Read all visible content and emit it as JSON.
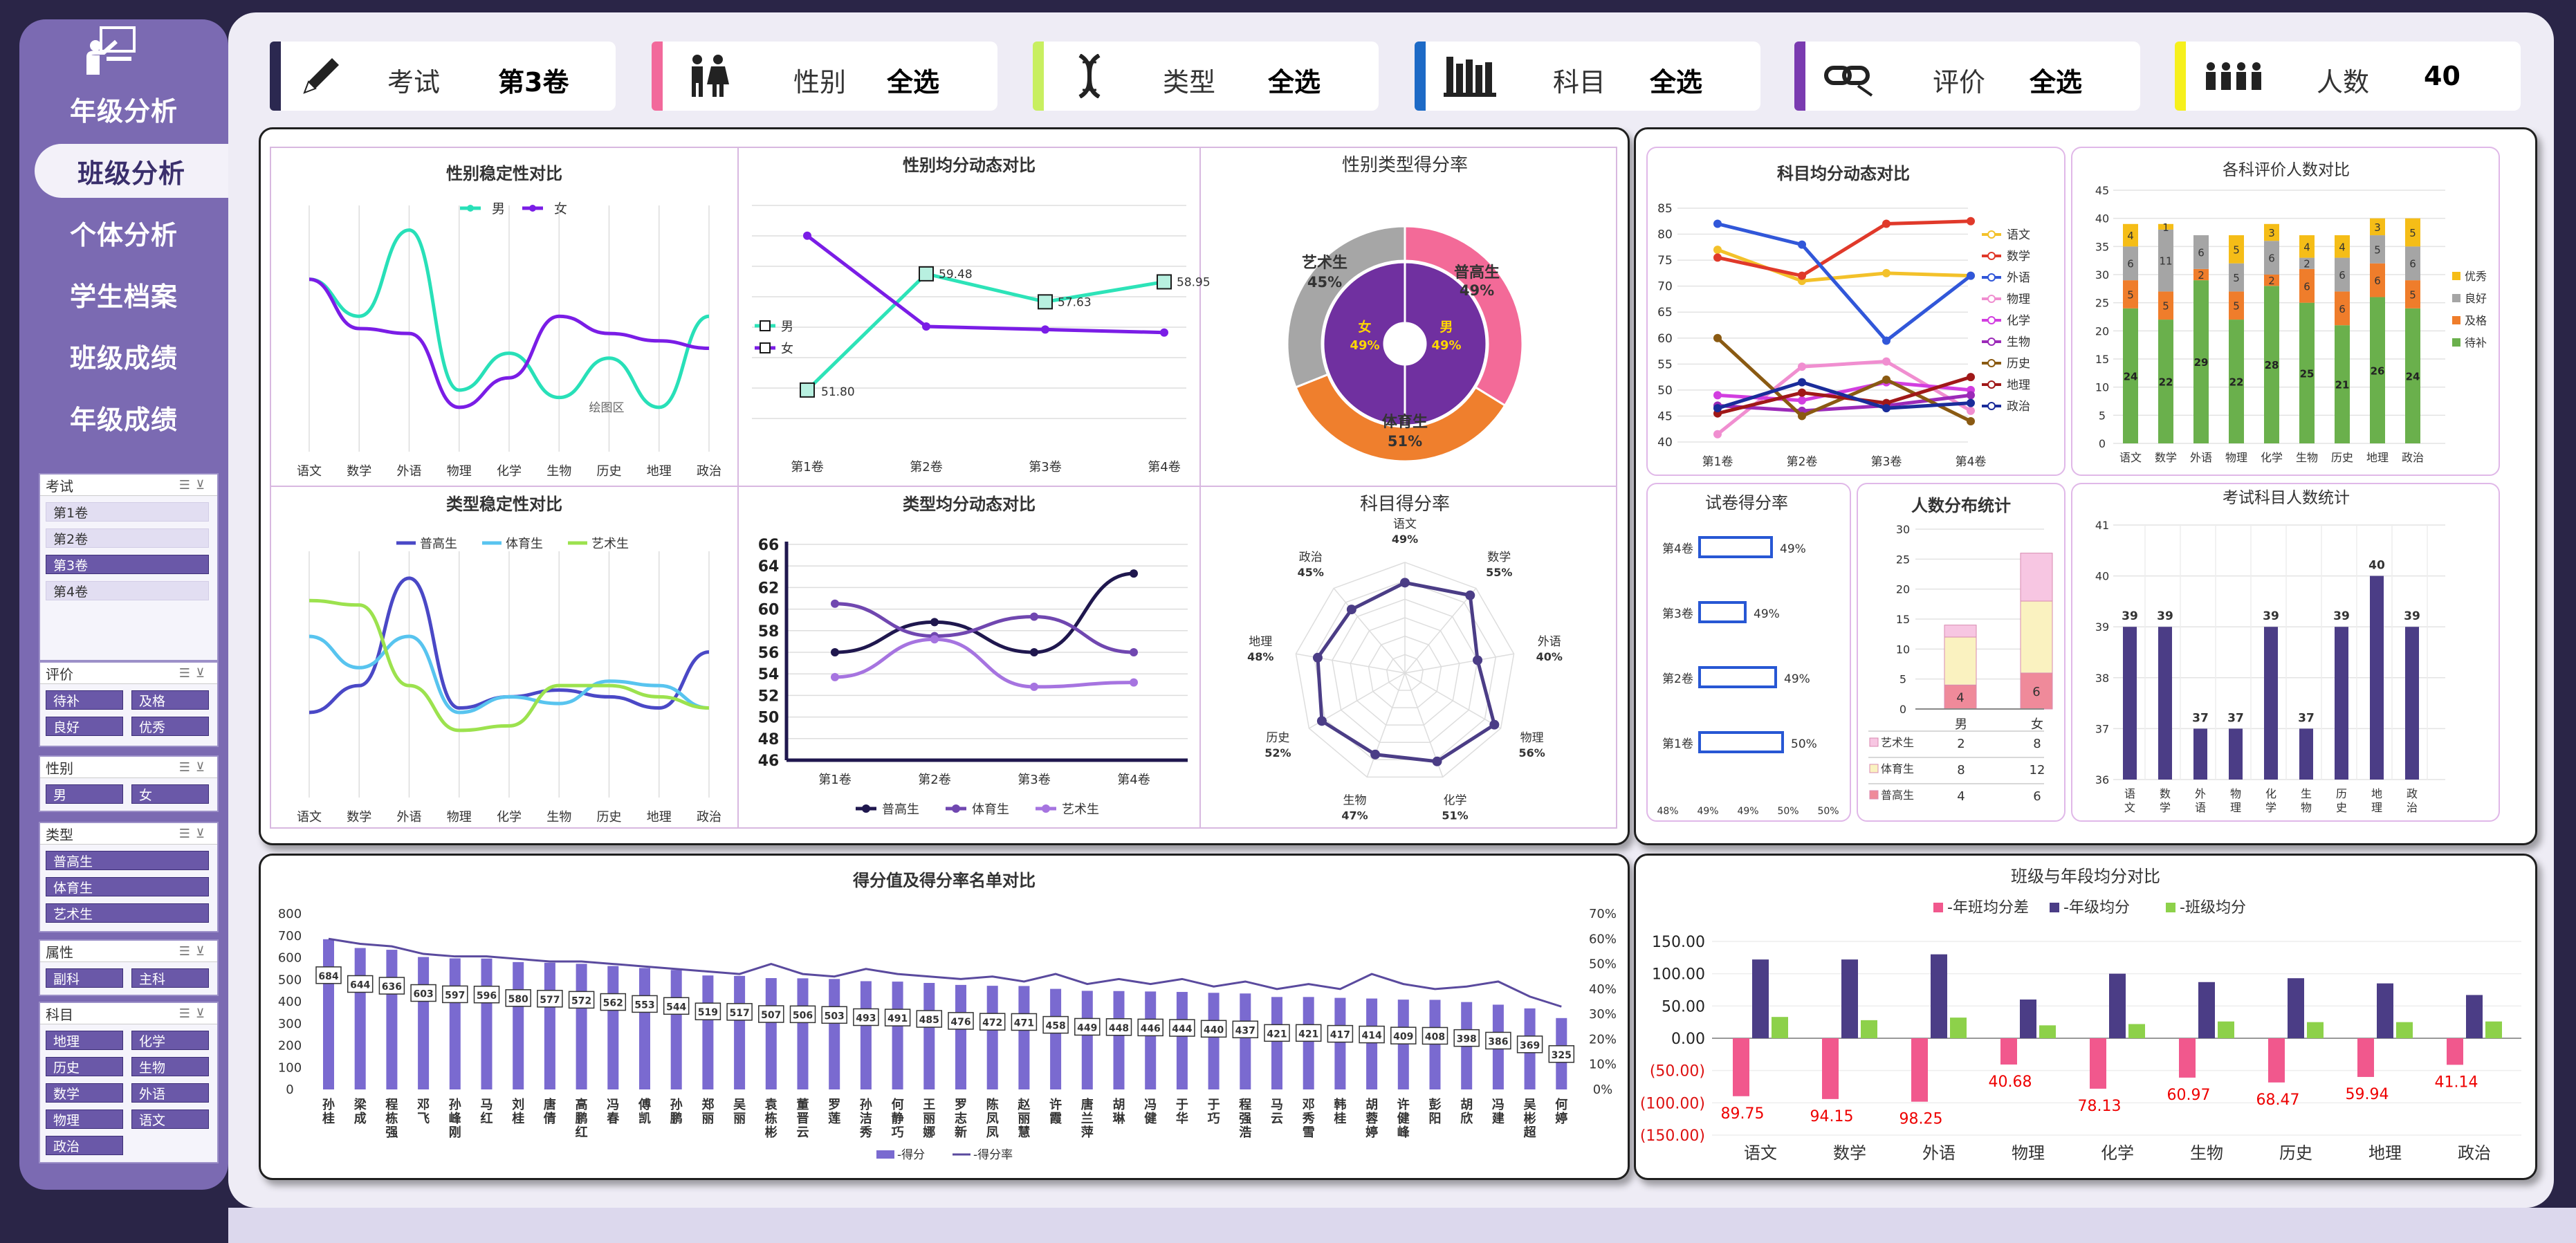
{
  "nav": [
    "年级分析",
    "班级分析",
    "个体分析",
    "学生档案",
    "班级成绩",
    "年级成绩"
  ],
  "filters": [
    {
      "label": "考试",
      "value": "第3卷",
      "color": "#2b2850",
      "icon": "pencil-icon"
    },
    {
      "label": "性别",
      "value": "全选",
      "color": "#f2699b",
      "icon": "gender-icon"
    },
    {
      "label": "类型",
      "value": "全选",
      "color": "#c8ef60",
      "icon": "dna-icon"
    },
    {
      "label": "科目",
      "value": "全选",
      "color": "#1d6ac6",
      "icon": "books-icon"
    },
    {
      "label": "评价",
      "value": "全选",
      "color": "#7a3bb0",
      "icon": "link-icon"
    },
    {
      "label": "人数",
      "value": "40",
      "color": "#f6f01c",
      "icon": "people-icon"
    }
  ],
  "slicers": {
    "exam": {
      "title": "考试",
      "items": [
        "第1卷",
        "第2卷",
        "第3卷",
        "第4卷"
      ],
      "selected": "第3卷"
    },
    "eval": {
      "title": "评价",
      "items": [
        "待补",
        "及格",
        "良好",
        "优秀"
      ]
    },
    "gender": {
      "title": "性别",
      "items": [
        "男",
        "女"
      ]
    },
    "type": {
      "title": "类型",
      "items": [
        "普高生",
        "体育生",
        "艺术生"
      ]
    },
    "attr": {
      "title": "属性",
      "items": [
        "副科",
        "主科"
      ]
    },
    "subject": {
      "title": "科目",
      "items": [
        "地理",
        "化学",
        "历史",
        "生物",
        "数学",
        "外语",
        "物理",
        "语文",
        "政治"
      ]
    }
  },
  "subjects": [
    "语文",
    "数学",
    "外语",
    "物理",
    "化学",
    "生物",
    "历史",
    "地理",
    "政治"
  ],
  "exams": [
    "第1卷",
    "第2卷",
    "第3卷",
    "第4卷"
  ],
  "charts": {
    "c1": {
      "title": "性别稳定性对比",
      "legend": [
        "男",
        "女"
      ]
    },
    "c2": {
      "title": "性别均分动态对比",
      "legend": [
        "男",
        "女"
      ],
      "labels": [
        "59.48",
        "57.63",
        "58.95",
        "51.80"
      ]
    },
    "c3": {
      "title": "性别类型得分率",
      "outer": [
        {
          "name": "普高生",
          "pct": "49%"
        },
        {
          "name": "体育生",
          "pct": "51%"
        },
        {
          "name": "艺术生",
          "pct": "45%"
        }
      ],
      "inner": [
        {
          "name": "女",
          "pct": "49%"
        },
        {
          "name": "男",
          "pct": "49%"
        }
      ]
    },
    "c4": {
      "title": "类型稳定性对比",
      "legend": [
        "普高生",
        "体育生",
        "艺术生"
      ]
    },
    "c5": {
      "title": "类型均分动态对比",
      "legend": [
        "普高生",
        "体育生",
        "艺术生"
      ]
    },
    "c6": {
      "title": "科目得分率",
      "subjects": [
        "语文",
        "数学",
        "外语",
        "物理",
        "化学",
        "生物",
        "历史",
        "地理",
        "政治"
      ],
      "pcts": [
        "49%",
        "55%",
        "40%",
        "56%",
        "51%",
        "47%",
        "52%",
        "48%",
        "45%"
      ]
    },
    "c7": {
      "title": "科目均分动态对比"
    },
    "c8": {
      "title": "各科评价人数对比",
      "legend": [
        "优秀",
        "良好",
        "及格",
        "待补"
      ]
    },
    "c9": {
      "title": "试卷得分率",
      "pcts": [
        "49%",
        "49%",
        "49%",
        "50%"
      ],
      "xticks": [
        "48%",
        "49%",
        "49%",
        "50%",
        "50%"
      ]
    },
    "c10": {
      "title": "人数分布统计",
      "cols": [
        "男",
        "女"
      ],
      "rows": [
        {
          "name": "艺术生",
          "m": "2",
          "f": "8"
        },
        {
          "name": "体育生",
          "m": "8",
          "f": "12"
        },
        {
          "name": "普高生",
          "m": "4",
          "f": "6"
        }
      ]
    },
    "c11": {
      "title": "考试科目人数统计"
    },
    "c12": {
      "title": "得分值及得分率名单对比",
      "legend": [
        "得分",
        "得分率"
      ]
    },
    "c13": {
      "title": "班级与年段均分对比",
      "legend": [
        "年班均分差",
        "年级均分",
        "班级均分"
      ]
    }
  },
  "chart_data": [
    {
      "type": "line",
      "title": "性别稳定性对比",
      "categories": [
        "语文",
        "数学",
        "外语",
        "物理",
        "化学",
        "生物",
        "历史",
        "地理",
        "政治"
      ],
      "series": [
        {
          "name": "男",
          "values": [
            70,
            55,
            90,
            25,
            40,
            22,
            38,
            18,
            55
          ]
        },
        {
          "name": "女",
          "values": [
            70,
            50,
            48,
            18,
            30,
            55,
            48,
            45,
            42
          ]
        }
      ]
    },
    {
      "type": "line",
      "title": "性别均分动态对比",
      "categories": [
        "第1卷",
        "第2卷",
        "第3卷",
        "第4卷"
      ],
      "series": [
        {
          "name": "男",
          "values": [
            51.8,
            59.48,
            57.63,
            58.95
          ]
        },
        {
          "name": "女",
          "values": [
            62,
            56,
            55.8,
            55.6
          ]
        }
      ]
    },
    {
      "type": "pie",
      "title": "性别类型得分率",
      "series": [
        {
          "name": "外环",
          "labels": [
            "普高生",
            "体育生",
            "艺术生"
          ],
          "values": [
            49,
            51,
            45
          ]
        },
        {
          "name": "内环",
          "labels": [
            "女",
            "男"
          ],
          "values": [
            49,
            49
          ]
        }
      ]
    },
    {
      "type": "line",
      "title": "类型稳定性对比",
      "categories": [
        "语文",
        "数学",
        "外语",
        "物理",
        "化学",
        "生物",
        "历史",
        "地理",
        "政治"
      ],
      "series": [
        {
          "name": "普高生",
          "values": [
            38,
            50,
            98,
            40,
            45,
            48,
            45,
            40,
            65
          ]
        },
        {
          "name": "体育生",
          "values": [
            72,
            58,
            72,
            38,
            45,
            42,
            52,
            50,
            40
          ]
        },
        {
          "name": "艺术生",
          "values": [
            88,
            86,
            50,
            30,
            32,
            50,
            50,
            45,
            40
          ]
        }
      ]
    },
    {
      "type": "line",
      "title": "类型均分动态对比",
      "categories": [
        "第1卷",
        "第2卷",
        "第3卷",
        "第4卷"
      ],
      "ylim": [
        46,
        66
      ],
      "series": [
        {
          "name": "普高生",
          "values": [
            56,
            58.8,
            56,
            63.3
          ]
        },
        {
          "name": "体育生",
          "values": [
            60.5,
            57.5,
            59.3,
            56
          ]
        },
        {
          "name": "艺术生",
          "values": [
            53.7,
            57.2,
            52.8,
            53.2
          ]
        }
      ]
    },
    {
      "type": "radar",
      "title": "科目得分率",
      "categories": [
        "语文",
        "数学",
        "外语",
        "物理",
        "化学",
        "生物",
        "历史",
        "地理",
        "政治"
      ],
      "values": [
        49,
        55,
        40,
        56,
        51,
        47,
        52,
        48,
        45
      ]
    },
    {
      "type": "line",
      "title": "科目均分动态对比",
      "categories": [
        "第1卷",
        "第2卷",
        "第3卷",
        "第4卷"
      ],
      "ylim": [
        40,
        85
      ],
      "series": [
        {
          "name": "语文",
          "values": [
            77,
            71,
            72.5,
            72
          ]
        },
        {
          "name": "数学",
          "values": [
            75.5,
            72,
            82,
            82.5
          ]
        },
        {
          "name": "外语",
          "values": [
            82,
            78,
            59.5,
            72
          ]
        },
        {
          "name": "物理",
          "values": [
            41.5,
            54.5,
            55.5,
            46
          ]
        },
        {
          "name": "化学",
          "values": [
            49,
            48,
            51.5,
            50
          ]
        },
        {
          "name": "生物",
          "values": [
            47,
            46,
            47,
            49
          ]
        },
        {
          "name": "历史",
          "values": [
            60,
            45,
            52,
            44
          ]
        },
        {
          "name": "地理",
          "values": [
            45.5,
            49.5,
            47.5,
            52.5
          ]
        },
        {
          "name": "政治",
          "values": [
            46.5,
            51.5,
            46.5,
            47.5
          ]
        }
      ]
    },
    {
      "type": "bar",
      "title": "各科评价人数对比",
      "stacked": true,
      "categories": [
        "语文",
        "数学",
        "外语",
        "物理",
        "化学",
        "生物",
        "历史",
        "地理",
        "政治"
      ],
      "ylim": [
        0,
        45
      ],
      "series": [
        {
          "name": "待补",
          "values": [
            24,
            22,
            29,
            22,
            28,
            25,
            21,
            26,
            24
          ]
        },
        {
          "name": "及格",
          "values": [
            5,
            5,
            2,
            5,
            2,
            6,
            6,
            6,
            5
          ]
        },
        {
          "name": "良好",
          "values": [
            6,
            11,
            6,
            5,
            6,
            2,
            6,
            5,
            6
          ]
        },
        {
          "name": "优秀",
          "values": [
            4,
            1,
            0,
            5,
            3,
            4,
            4,
            3,
            5
          ]
        }
      ]
    },
    {
      "type": "bar",
      "title": "试卷得分率",
      "orientation": "horizontal",
      "categories": [
        "第4卷",
        "第3卷",
        "第2卷",
        "第1卷"
      ],
      "values": [
        49,
        49,
        49,
        50
      ]
    },
    {
      "type": "bar",
      "title": "人数分布统计",
      "stacked": true,
      "categories": [
        "男",
        "女"
      ],
      "ylim": [
        0,
        30
      ],
      "series": [
        {
          "name": "普高生",
          "values": [
            4,
            6
          ]
        },
        {
          "name": "体育生",
          "values": [
            8,
            12
          ]
        },
        {
          "name": "艺术生",
          "values": [
            2,
            8
          ]
        }
      ]
    },
    {
      "type": "bar",
      "title": "考试科目人数统计",
      "categories": [
        "语文",
        "数学",
        "外语",
        "物理",
        "化学",
        "生物",
        "历史",
        "地理",
        "政治"
      ],
      "values": [
        39,
        39,
        37,
        37,
        39,
        37,
        39,
        40,
        39
      ],
      "ylim": [
        36,
        41
      ]
    },
    {
      "type": "bar",
      "title": "得分值及得分率名单对比",
      "categories": [
        "孙桂",
        "梁成",
        "程栋强",
        "邓飞",
        "孙峰刚",
        "马红",
        "刘桂",
        "唐倩",
        "高鹏红",
        "冯春",
        "傅凯",
        "孙鹏",
        "郑丽",
        "吴丽",
        "袁栋彬",
        "董晋云",
        "罗莲",
        "孙洁秀",
        "何静巧",
        "王丽娜",
        "罗志新",
        "陈凤凤",
        "赵丽慧",
        "许霞",
        "唐兰萍",
        "胡琳",
        "冯健",
        "于华",
        "于巧",
        "程强浩",
        "马云",
        "邓秀雪",
        "韩桂",
        "胡蓉婷",
        "许健峰",
        "彭阳",
        "胡欣",
        "冯建",
        "吴彬超",
        "何婷"
      ],
      "values": [
        684,
        644,
        636,
        603,
        597,
        596,
        580,
        577,
        572,
        562,
        553,
        544,
        519,
        517,
        507,
        506,
        503,
        493,
        491,
        485,
        476,
        472,
        471,
        458,
        449,
        448,
        446,
        444,
        440,
        437,
        421,
        421,
        417,
        414,
        409,
        408,
        398,
        386,
        369,
        325
      ],
      "ylim": [
        0,
        800
      ],
      "y2lim": [
        0,
        70
      ],
      "series2": [
        {
          "name": "得分率",
          "values": [
            60,
            58,
            57,
            54,
            53,
            53,
            52,
            51,
            51,
            50,
            49,
            48,
            47,
            46,
            50,
            46,
            45,
            48,
            46,
            45,
            44,
            45,
            43,
            46,
            42,
            44,
            42,
            44,
            41,
            43,
            40,
            42,
            40,
            46,
            42,
            40,
            41,
            43,
            37,
            33
          ]
        }
      ]
    },
    {
      "type": "bar",
      "title": "班级与年段均分对比",
      "categories": [
        "语文",
        "数学",
        "外语",
        "物理",
        "化学",
        "生物",
        "历史",
        "地理",
        "政治"
      ],
      "ylim": [
        -150,
        150
      ],
      "series": [
        {
          "name": "年班均分差",
          "values": [
            -89.75,
            -94.15,
            -98.25,
            -40.68,
            -78.13,
            -60.97,
            -68.47,
            -59.94,
            -41.14
          ]
        },
        {
          "name": "年级均分",
          "values": [
            122,
            122,
            130,
            60,
            100,
            87,
            93,
            85,
            67
          ]
        },
        {
          "name": "班级均分",
          "values": [
            33,
            28,
            32,
            20,
            22,
            26,
            25,
            25,
            26
          ]
        }
      ],
      "labels": [
        "89.75",
        "94.15",
        "98.25",
        "40.68",
        "78.13",
        "60.97",
        "68.47",
        "59.94",
        "41.14"
      ],
      "yticks": [
        "150.00",
        "100.00",
        "50.00",
        "0.00",
        "(50.00)",
        "(100.00)",
        "(150.00)"
      ]
    }
  ]
}
